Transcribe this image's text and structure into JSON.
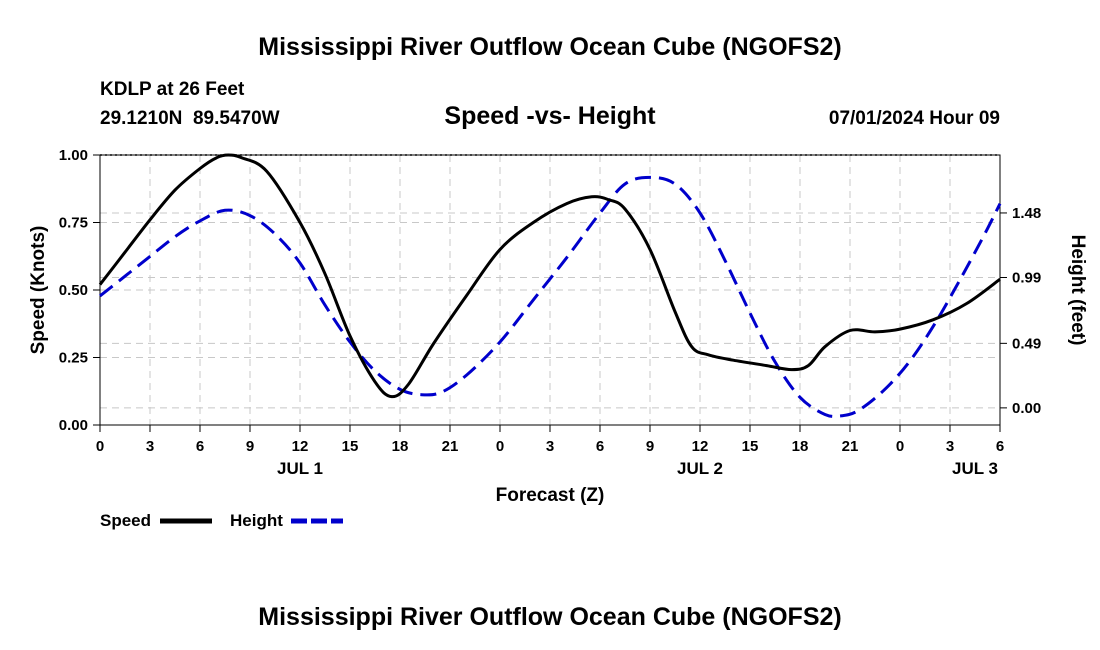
{
  "chart_data": {
    "type": "line",
    "title": "Mississippi River Outflow Ocean Cube (NGOFS2)",
    "station_name": "KDLP at 26 Feet",
    "station_coords": "29.1210N  89.5470W",
    "subtitle": "Speed -vs- Height",
    "datetime": "07/01/2024 Hour 09",
    "footer_title": "Mississippi River Outflow Ocean Cube (NGOFS2)",
    "xlabel": "Forecast (Z)",
    "ylabel_left": "Speed (Knots)",
    "ylabel_right": "Height (feet)",
    "x_range": [
      0,
      54
    ],
    "x_ticks": [
      {
        "h": 0,
        "label": "0"
      },
      {
        "h": 3,
        "label": "3"
      },
      {
        "h": 6,
        "label": "6"
      },
      {
        "h": 9,
        "label": "9"
      },
      {
        "h": 12,
        "label": "12"
      },
      {
        "h": 15,
        "label": "15"
      },
      {
        "h": 18,
        "label": "18"
      },
      {
        "h": 21,
        "label": "21"
      },
      {
        "h": 24,
        "label": "0"
      },
      {
        "h": 27,
        "label": "3"
      },
      {
        "h": 30,
        "label": "6"
      },
      {
        "h": 33,
        "label": "9"
      },
      {
        "h": 36,
        "label": "12"
      },
      {
        "h": 39,
        "label": "15"
      },
      {
        "h": 42,
        "label": "18"
      },
      {
        "h": 45,
        "label": "21"
      },
      {
        "h": 48,
        "label": "0"
      },
      {
        "h": 51,
        "label": "3"
      },
      {
        "h": 54,
        "label": "6"
      }
    ],
    "date_labels": [
      {
        "h": 12,
        "label": "JUL 1"
      },
      {
        "h": 36,
        "label": "JUL 2"
      },
      {
        "h": 52.5,
        "label": "JUL 3"
      }
    ],
    "left_axis": {
      "ylim": [
        0,
        1
      ],
      "ticks": [
        {
          "v": 0,
          "label": "0.00"
        },
        {
          "v": 0.25,
          "label": "0.25"
        },
        {
          "v": 0.5,
          "label": "0.50"
        },
        {
          "v": 0.75,
          "label": "0.75"
        },
        {
          "v": 1.0,
          "label": "1.00"
        }
      ]
    },
    "right_axis": {
      "ylim": [
        -0.13,
        1.92
      ],
      "ticks": [
        {
          "v": 0.0,
          "label": "0.00"
        },
        {
          "v": 0.49,
          "label": "0.49"
        },
        {
          "v": 0.99,
          "label": "0.99"
        },
        {
          "v": 1.48,
          "label": "1.48"
        }
      ]
    },
    "legend": [
      {
        "label": "Speed",
        "color": "#000000",
        "dashed": false
      },
      {
        "label": "Height",
        "color": "#0000cc",
        "dashed": true
      }
    ],
    "series": [
      {
        "name": "Speed",
        "axis": "left",
        "color": "#000000",
        "x": [
          0,
          1.5,
          3,
          4.5,
          6,
          7,
          7.7,
          8.5,
          10,
          12,
          13.5,
          15,
          16.5,
          17.5,
          18.5,
          20,
          22,
          24,
          26,
          28,
          29.5,
          30.5,
          31.5,
          33,
          34.5,
          35.5,
          36.5,
          38,
          40,
          41.5,
          42.5,
          43.5,
          45,
          46.5,
          48,
          50,
          52,
          54
        ],
        "values": [
          0.52,
          0.64,
          0.76,
          0.87,
          0.95,
          0.99,
          1.0,
          0.99,
          0.94,
          0.75,
          0.56,
          0.33,
          0.16,
          0.105,
          0.15,
          0.3,
          0.48,
          0.65,
          0.75,
          0.82,
          0.845,
          0.835,
          0.8,
          0.65,
          0.42,
          0.29,
          0.26,
          0.24,
          0.22,
          0.205,
          0.22,
          0.29,
          0.35,
          0.345,
          0.355,
          0.39,
          0.45,
          0.54
        ]
      },
      {
        "name": "Height",
        "axis": "right",
        "color": "#0000cc",
        "x": [
          0,
          1.5,
          3,
          4.5,
          6,
          7.5,
          9,
          10.5,
          12,
          13.5,
          15,
          16.5,
          18,
          19.3,
          20.5,
          22,
          24,
          26,
          28,
          30,
          31.5,
          33,
          34.5,
          36,
          37.5,
          39,
          40.5,
          42,
          43.5,
          44.5,
          45.5,
          47,
          48.5,
          50,
          51.5,
          53,
          54
        ],
        "values": [
          0.85,
          1.0,
          1.15,
          1.3,
          1.42,
          1.5,
          1.46,
          1.32,
          1.1,
          0.78,
          0.5,
          0.28,
          0.14,
          0.1,
          0.12,
          0.25,
          0.5,
          0.82,
          1.14,
          1.48,
          1.7,
          1.75,
          1.7,
          1.48,
          1.12,
          0.72,
          0.35,
          0.08,
          -0.05,
          -0.06,
          -0.02,
          0.13,
          0.34,
          0.62,
          0.95,
          1.3,
          1.55
        ]
      }
    ]
  }
}
